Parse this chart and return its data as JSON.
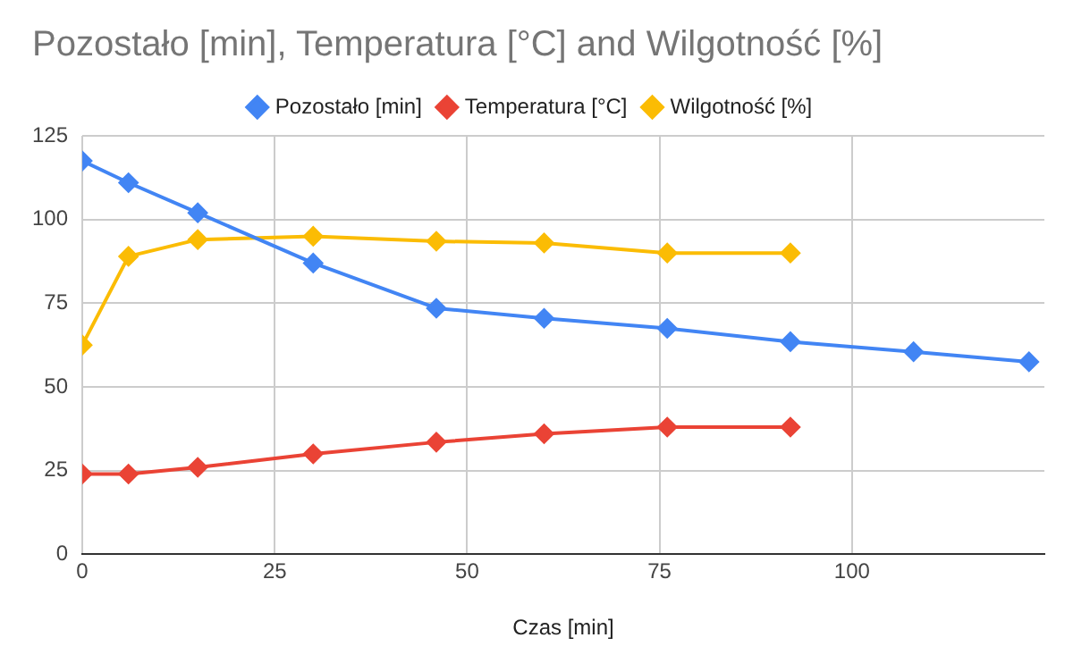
{
  "chart_data": {
    "type": "line",
    "title": "Pozostało [min], Temperatura [°C] and Wilgotność [%]",
    "xlabel": "Czas [min]",
    "x": [
      0,
      6,
      15,
      30,
      46,
      60,
      76,
      92,
      108,
      123
    ],
    "series": [
      {
        "name": "Pozostało [min]",
        "color": "#4285f4",
        "values": [
          117.5,
          111,
          102,
          87,
          73.5,
          70.5,
          67.5,
          63.5,
          60.5,
          57.5
        ]
      },
      {
        "name": "Temperatura [°C]",
        "color": "#ea4335",
        "values": [
          24,
          24,
          26,
          30,
          33.5,
          36,
          38,
          38,
          null,
          null
        ]
      },
      {
        "name": "Wilgotność [%]",
        "color": "#fbbc04",
        "values": [
          62.5,
          89,
          94,
          95,
          93.5,
          93,
          90,
          90,
          null,
          null
        ]
      }
    ],
    "xlim": [
      0,
      125
    ],
    "xticks": [
      0,
      25,
      50,
      75,
      100
    ],
    "ylim": [
      0,
      125
    ],
    "yticks": [
      0,
      25,
      50,
      75,
      100,
      125
    ],
    "grid": true,
    "legend": "top",
    "marker": "diamond",
    "line_style": "solid"
  }
}
